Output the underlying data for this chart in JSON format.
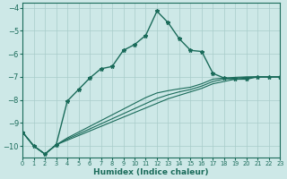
{
  "xlabel": "Humidex (Indice chaleur)",
  "bg_color": "#cde8e7",
  "grid_color": "#a8ccca",
  "line_color": "#1a6b5a",
  "xlim": [
    0,
    23
  ],
  "ylim": [
    -10.5,
    -3.8
  ],
  "xticks": [
    0,
    1,
    2,
    3,
    4,
    5,
    6,
    7,
    8,
    9,
    10,
    11,
    12,
    13,
    14,
    15,
    16,
    17,
    18,
    19,
    20,
    21,
    22,
    23
  ],
  "yticks": [
    -10,
    -9,
    -8,
    -7,
    -6,
    -5,
    -4
  ],
  "main_x": [
    0,
    1,
    2,
    3,
    4,
    5,
    6,
    7,
    8,
    9,
    10,
    11,
    12,
    13,
    14,
    15,
    16,
    17,
    18,
    19,
    20,
    21,
    22,
    23
  ],
  "main_y": [
    -9.4,
    -10.0,
    -10.35,
    -9.95,
    -8.05,
    -7.55,
    -7.05,
    -6.65,
    -6.55,
    -5.85,
    -5.6,
    -5.2,
    -4.15,
    -4.65,
    -5.35,
    -5.85,
    -5.9,
    -6.85,
    -7.05,
    -7.1,
    -7.1,
    -7.0,
    -7.0,
    -7.0
  ],
  "lin1_x": [
    0,
    1,
    2,
    3,
    4,
    5,
    6,
    7,
    8,
    9,
    10,
    11,
    12,
    13,
    14,
    15,
    16,
    17,
    18,
    19,
    20,
    21,
    22,
    23
  ],
  "lin1_y": [
    -9.4,
    -10.0,
    -10.35,
    -9.95,
    -9.75,
    -9.55,
    -9.35,
    -9.15,
    -8.95,
    -8.75,
    -8.55,
    -8.35,
    -8.15,
    -7.95,
    -7.8,
    -7.65,
    -7.5,
    -7.3,
    -7.2,
    -7.1,
    -7.05,
    -7.0,
    -7.0,
    -7.0
  ],
  "lin2_x": [
    0,
    1,
    2,
    3,
    4,
    5,
    6,
    7,
    8,
    9,
    10,
    11,
    12,
    13,
    14,
    15,
    16,
    17,
    18,
    19,
    20,
    21,
    22,
    23
  ],
  "lin2_y": [
    -9.4,
    -10.0,
    -10.35,
    -9.95,
    -9.7,
    -9.48,
    -9.26,
    -9.04,
    -8.82,
    -8.6,
    -8.38,
    -8.16,
    -7.94,
    -7.78,
    -7.65,
    -7.55,
    -7.4,
    -7.2,
    -7.1,
    -7.05,
    -7.02,
    -7.0,
    -7.0,
    -7.0
  ],
  "lin3_x": [
    0,
    1,
    2,
    3,
    4,
    5,
    6,
    7,
    8,
    9,
    10,
    11,
    12,
    13,
    14,
    15,
    16,
    17,
    18,
    19,
    20,
    21,
    22,
    23
  ],
  "lin3_y": [
    -9.4,
    -10.0,
    -10.35,
    -9.95,
    -9.65,
    -9.4,
    -9.15,
    -8.9,
    -8.65,
    -8.4,
    -8.15,
    -7.9,
    -7.7,
    -7.6,
    -7.52,
    -7.45,
    -7.3,
    -7.1,
    -7.05,
    -7.02,
    -7.0,
    -7.0,
    -7.0,
    -7.0
  ]
}
